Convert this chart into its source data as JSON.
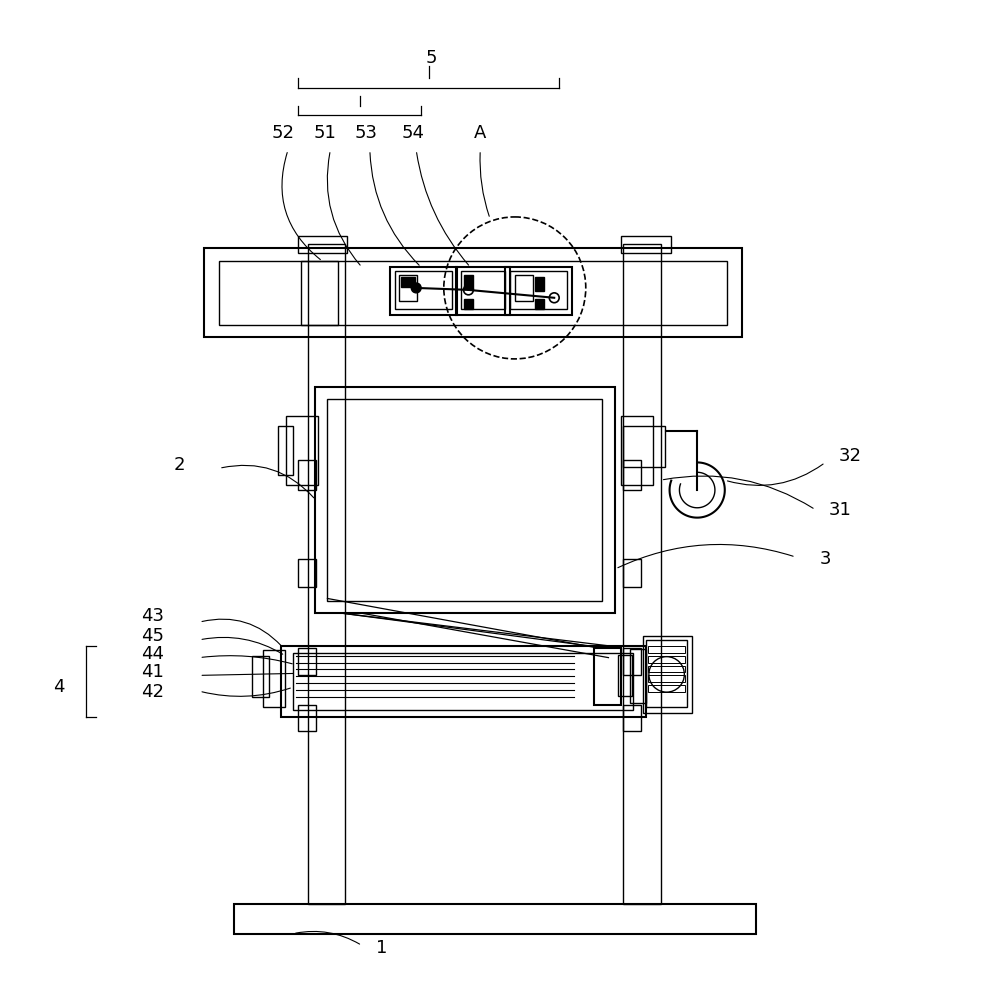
{
  "bg_color": "#ffffff",
  "line_color": "#000000",
  "fig_width": 10.0,
  "fig_height": 9.84,
  "lw": 1.0,
  "lw2": 1.5,
  "lw3": 2.0
}
